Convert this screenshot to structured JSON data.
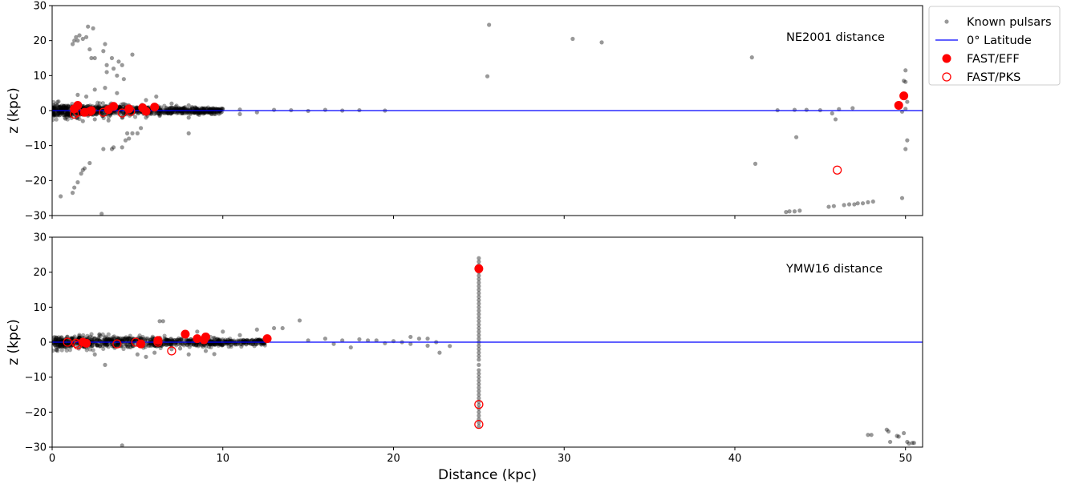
{
  "chart_data": [
    {
      "type": "scatter",
      "panel": "top",
      "annotation": "NE2001 distance",
      "ylabel": "z (kpc)",
      "xlabel": "",
      "xlim": [
        0,
        51
      ],
      "ylim": [
        -30,
        30
      ],
      "xticks": [
        0,
        10,
        20,
        30,
        40,
        50
      ],
      "xtick_labels": [
        "",
        "",
        "",
        "",
        "",
        ""
      ],
      "yticks": [
        -30,
        -20,
        -10,
        0,
        10,
        20,
        30
      ],
      "ytick_labels": [
        "−30",
        "−20",
        "−10",
        "0",
        "10",
        "20",
        "30"
      ],
      "grid": false,
      "series": [
        {
          "name": "Known pulsars",
          "color": "#000000",
          "points": [
            [
              0.5,
              -24.5
            ],
            [
              1.2,
              -23.5
            ],
            [
              1.3,
              -22
            ],
            [
              1.5,
              -20.5
            ],
            [
              1.7,
              -18
            ],
            [
              1.8,
              -17
            ],
            [
              1.9,
              -16.5
            ],
            [
              2.2,
              -15
            ],
            [
              2.9,
              -29.5
            ],
            [
              1.2,
              19
            ],
            [
              1.3,
              20
            ],
            [
              1.4,
              21
            ],
            [
              1.5,
              20
            ],
            [
              1.6,
              21.5
            ],
            [
              1.8,
              20.5
            ],
            [
              2,
              21
            ],
            [
              2.1,
              24
            ],
            [
              2.4,
              23.5
            ],
            [
              2.2,
              17.5
            ],
            [
              2.3,
              15
            ],
            [
              2.5,
              15
            ],
            [
              3.1,
              19
            ],
            [
              3,
              17
            ],
            [
              3.2,
              13
            ],
            [
              3.5,
              15
            ],
            [
              3.6,
              12
            ],
            [
              3.9,
              14
            ],
            [
              4.1,
              13
            ],
            [
              4.7,
              16
            ],
            [
              3.2,
              11
            ],
            [
              3.8,
              10
            ],
            [
              4.2,
              9
            ],
            [
              3,
              -11
            ],
            [
              3.5,
              -11
            ],
            [
              3.6,
              -10.5
            ],
            [
              4.1,
              -10.5
            ],
            [
              4.3,
              -8.5
            ],
            [
              4.5,
              -8
            ],
            [
              4.7,
              -6.5
            ],
            [
              5,
              -6.5
            ],
            [
              5.2,
              -5
            ],
            [
              8,
              -6.5
            ],
            [
              4.4,
              -6.5
            ],
            [
              1.5,
              4.5
            ],
            [
              2,
              4
            ],
            [
              2.5,
              6
            ],
            [
              3.1,
              6.5
            ],
            [
              3.8,
              5
            ],
            [
              6.1,
              4
            ],
            [
              5.5,
              3
            ],
            [
              7,
              2
            ],
            [
              8,
              1.5
            ],
            [
              1.8,
              -3
            ],
            [
              2.5,
              -2.5
            ],
            [
              3.3,
              -2.8
            ],
            [
              4.1,
              -2
            ],
            [
              5.5,
              -2
            ],
            [
              6.3,
              -1.5
            ],
            [
              8,
              -2
            ],
            [
              9.5,
              -1
            ],
            [
              11,
              -1
            ],
            [
              25.6,
              24.5
            ],
            [
              25.5,
              9.8
            ],
            [
              30.5,
              20.5
            ],
            [
              32.2,
              19.5
            ],
            [
              41,
              15.2
            ],
            [
              41.2,
              -15.2
            ],
            [
              43.6,
              -7.6
            ],
            [
              42.5,
              0.1
            ],
            [
              43.5,
              0.2
            ],
            [
              44.2,
              0.2
            ],
            [
              45,
              0.1
            ],
            [
              45.7,
              -0.8
            ],
            [
              46.1,
              0.4
            ],
            [
              46.9,
              0.7
            ],
            [
              45.9,
              -2.5
            ],
            [
              43,
              -29
            ],
            [
              43.2,
              -28.8
            ],
            [
              43.5,
              -28.8
            ],
            [
              43.8,
              -28.6
            ],
            [
              45.5,
              -27.5
            ],
            [
              45.8,
              -27.3
            ],
            [
              46.4,
              -27
            ],
            [
              46.7,
              -26.8
            ],
            [
              47,
              -26.8
            ],
            [
              47.2,
              -26.5
            ],
            [
              47.5,
              -26.5
            ],
            [
              47.8,
              -26.2
            ],
            [
              48.1,
              -26
            ],
            [
              49.8,
              -25
            ],
            [
              50,
              11.5
            ],
            [
              49.9,
              8.5
            ],
            [
              50,
              8.2
            ],
            [
              50.1,
              -8.5
            ],
            [
              50,
              -11
            ],
            [
              50,
              0.5
            ],
            [
              49.8,
              -0.3
            ],
            [
              50.1,
              2.5
            ],
            [
              10,
              0.5
            ],
            [
              11,
              0.3
            ],
            [
              12,
              -0.5
            ],
            [
              13,
              0.2
            ],
            [
              14,
              0.1
            ],
            [
              15,
              -0.1
            ],
            [
              16,
              0.2
            ],
            [
              17,
              0
            ],
            [
              18,
              0.1
            ],
            [
              19.5,
              0
            ]
          ]
        },
        {
          "name": "0° Latitude",
          "color": "#0000ff",
          "line_y": 0
        },
        {
          "name": "FAST/EFF",
          "color": "#ff0000",
          "points": [
            [
              1.3,
              0.5
            ],
            [
              1.5,
              1.5
            ],
            [
              1.9,
              -0.5
            ],
            [
              2.3,
              0
            ],
            [
              3.3,
              0.3
            ],
            [
              3.6,
              1.2
            ],
            [
              4.5,
              0.5
            ],
            [
              5.3,
              0.8
            ],
            [
              5.5,
              -0.2
            ],
            [
              6,
              1
            ],
            [
              49.6,
              1.5
            ],
            [
              49.9,
              4.2
            ]
          ]
        },
        {
          "name": "FAST/PKS",
          "color": "#ff0000",
          "points": [
            [
              1.3,
              -1
            ],
            [
              1.5,
              -0.5
            ],
            [
              2.2,
              -0.3
            ],
            [
              3,
              -0.5
            ],
            [
              4.1,
              -0.7
            ],
            [
              4.6,
              -0.2
            ],
            [
              46,
              -17
            ]
          ]
        }
      ]
    },
    {
      "type": "scatter",
      "panel": "bottom",
      "annotation": "YMW16 distance",
      "ylabel": "z (kpc)",
      "xlabel": "Distance (kpc)",
      "xlim": [
        0,
        51
      ],
      "ylim": [
        -30,
        30
      ],
      "xticks": [
        0,
        10,
        20,
        30,
        40,
        50
      ],
      "xtick_labels": [
        "0",
        "10",
        "20",
        "30",
        "40",
        "50"
      ],
      "yticks": [
        -30,
        -20,
        -10,
        0,
        10,
        20,
        30
      ],
      "ytick_labels": [
        "−30",
        "−20",
        "−10",
        "0",
        "10",
        "20",
        "30"
      ],
      "grid": false,
      "series": [
        {
          "name": "Known pulsars",
          "color": "#000000",
          "points": [
            [
              2.5,
              -3.5
            ],
            [
              3.1,
              -6.5
            ],
            [
              4.1,
              -29.5
            ],
            [
              5,
              -3.5
            ],
            [
              5.5,
              -4.2
            ],
            [
              6,
              -3
            ],
            [
              7,
              -2
            ],
            [
              8,
              -3.5
            ],
            [
              9,
              -2.5
            ],
            [
              7.5,
              -1.8
            ],
            [
              9.5,
              -3.4
            ],
            [
              6.3,
              6
            ],
            [
              6.5,
              6
            ],
            [
              13,
              4
            ],
            [
              13.5,
              4
            ],
            [
              12,
              3.6
            ],
            [
              14.5,
              6.2
            ],
            [
              10,
              3
            ],
            [
              11,
              2
            ],
            [
              8.5,
              3
            ],
            [
              15,
              0.5
            ],
            [
              16,
              1
            ],
            [
              17,
              0.5
            ],
            [
              18,
              0.8
            ],
            [
              19,
              0.5
            ],
            [
              20,
              0.3
            ],
            [
              21,
              1.5
            ],
            [
              21.5,
              1
            ],
            [
              22,
              1
            ],
            [
              22.5,
              0
            ],
            [
              22,
              -1
            ],
            [
              22.7,
              -3
            ],
            [
              23.3,
              -1.1
            ],
            [
              20.5,
              0
            ],
            [
              19.5,
              -0.3
            ],
            [
              16.5,
              -0.5
            ],
            [
              17.5,
              -1.5
            ],
            [
              18.5,
              0.5
            ],
            [
              21,
              -0.5
            ],
            [
              25,
              24
            ],
            [
              25,
              23
            ],
            [
              25,
              22
            ],
            [
              25,
              20
            ],
            [
              25,
              19
            ],
            [
              25,
              18
            ],
            [
              25,
              17
            ],
            [
              25,
              16
            ],
            [
              25,
              15
            ],
            [
              25,
              14
            ],
            [
              25,
              13
            ],
            [
              25,
              12
            ],
            [
              25,
              11
            ],
            [
              25,
              10
            ],
            [
              25,
              9
            ],
            [
              25,
              8
            ],
            [
              25,
              7
            ],
            [
              25,
              6
            ],
            [
              25,
              5
            ],
            [
              25,
              4
            ],
            [
              25,
              3
            ],
            [
              25,
              2
            ],
            [
              25,
              1
            ],
            [
              25,
              0
            ],
            [
              25,
              -1
            ],
            [
              25,
              -2
            ],
            [
              25,
              -3
            ],
            [
              25,
              -4
            ],
            [
              25,
              -5
            ],
            [
              25,
              -6.5
            ],
            [
              25,
              -8
            ],
            [
              25,
              -9
            ],
            [
              25,
              -10
            ],
            [
              25,
              -11
            ],
            [
              25,
              -12
            ],
            [
              25,
              -13
            ],
            [
              25,
              -14
            ],
            [
              25,
              -15
            ],
            [
              25,
              -16
            ],
            [
              25,
              -17
            ],
            [
              25,
              -18
            ],
            [
              25,
              -19
            ],
            [
              25,
              -20
            ],
            [
              25,
              -21
            ],
            [
              25,
              -22
            ],
            [
              25,
              -23
            ],
            [
              25,
              -24
            ],
            [
              47.8,
              -26.5
            ],
            [
              48,
              -26.5
            ],
            [
              48.9,
              -25
            ],
            [
              49,
              -25.5
            ],
            [
              49.1,
              -28.5
            ],
            [
              49.5,
              -26.8
            ],
            [
              49.6,
              -27
            ],
            [
              49.9,
              -26
            ],
            [
              50.1,
              -28.5
            ],
            [
              50.2,
              -29
            ],
            [
              50.4,
              -28.8
            ],
            [
              50.5,
              -28.8
            ]
          ]
        },
        {
          "name": "0° Latitude",
          "color": "#0000ff",
          "line_y": 0
        },
        {
          "name": "FAST/EFF",
          "color": "#ff0000",
          "points": [
            [
              1.8,
              0
            ],
            [
              2,
              -0.3
            ],
            [
              5.2,
              -0.5
            ],
            [
              6.2,
              0.5
            ],
            [
              7.8,
              2.3
            ],
            [
              8.5,
              1
            ],
            [
              8.9,
              0.7
            ],
            [
              9,
              1.5
            ],
            [
              12.6,
              1
            ],
            [
              25,
              21
            ]
          ]
        },
        {
          "name": "FAST/PKS",
          "color": "#ff0000",
          "points": [
            [
              0.9,
              0
            ],
            [
              1.4,
              -0.3
            ],
            [
              1.5,
              -0.8
            ],
            [
              3.8,
              -0.5
            ],
            [
              4.9,
              0
            ],
            [
              6.2,
              0
            ],
            [
              7,
              -2.5
            ],
            [
              25,
              -17.8
            ],
            [
              25,
              -23.5
            ]
          ]
        }
      ]
    }
  ],
  "legend": {
    "placement": "outside-right",
    "items": [
      {
        "label": "Known pulsars",
        "marker": "dot",
        "color": "#000000"
      },
      {
        "label": "0° Latitude",
        "marker": "line",
        "color": "#0000ff"
      },
      {
        "label": "FAST/EFF",
        "marker": "filled-circle",
        "color": "#ff0000"
      },
      {
        "label": "FAST/PKS",
        "marker": "open-circle",
        "color": "#ff0000"
      }
    ]
  }
}
